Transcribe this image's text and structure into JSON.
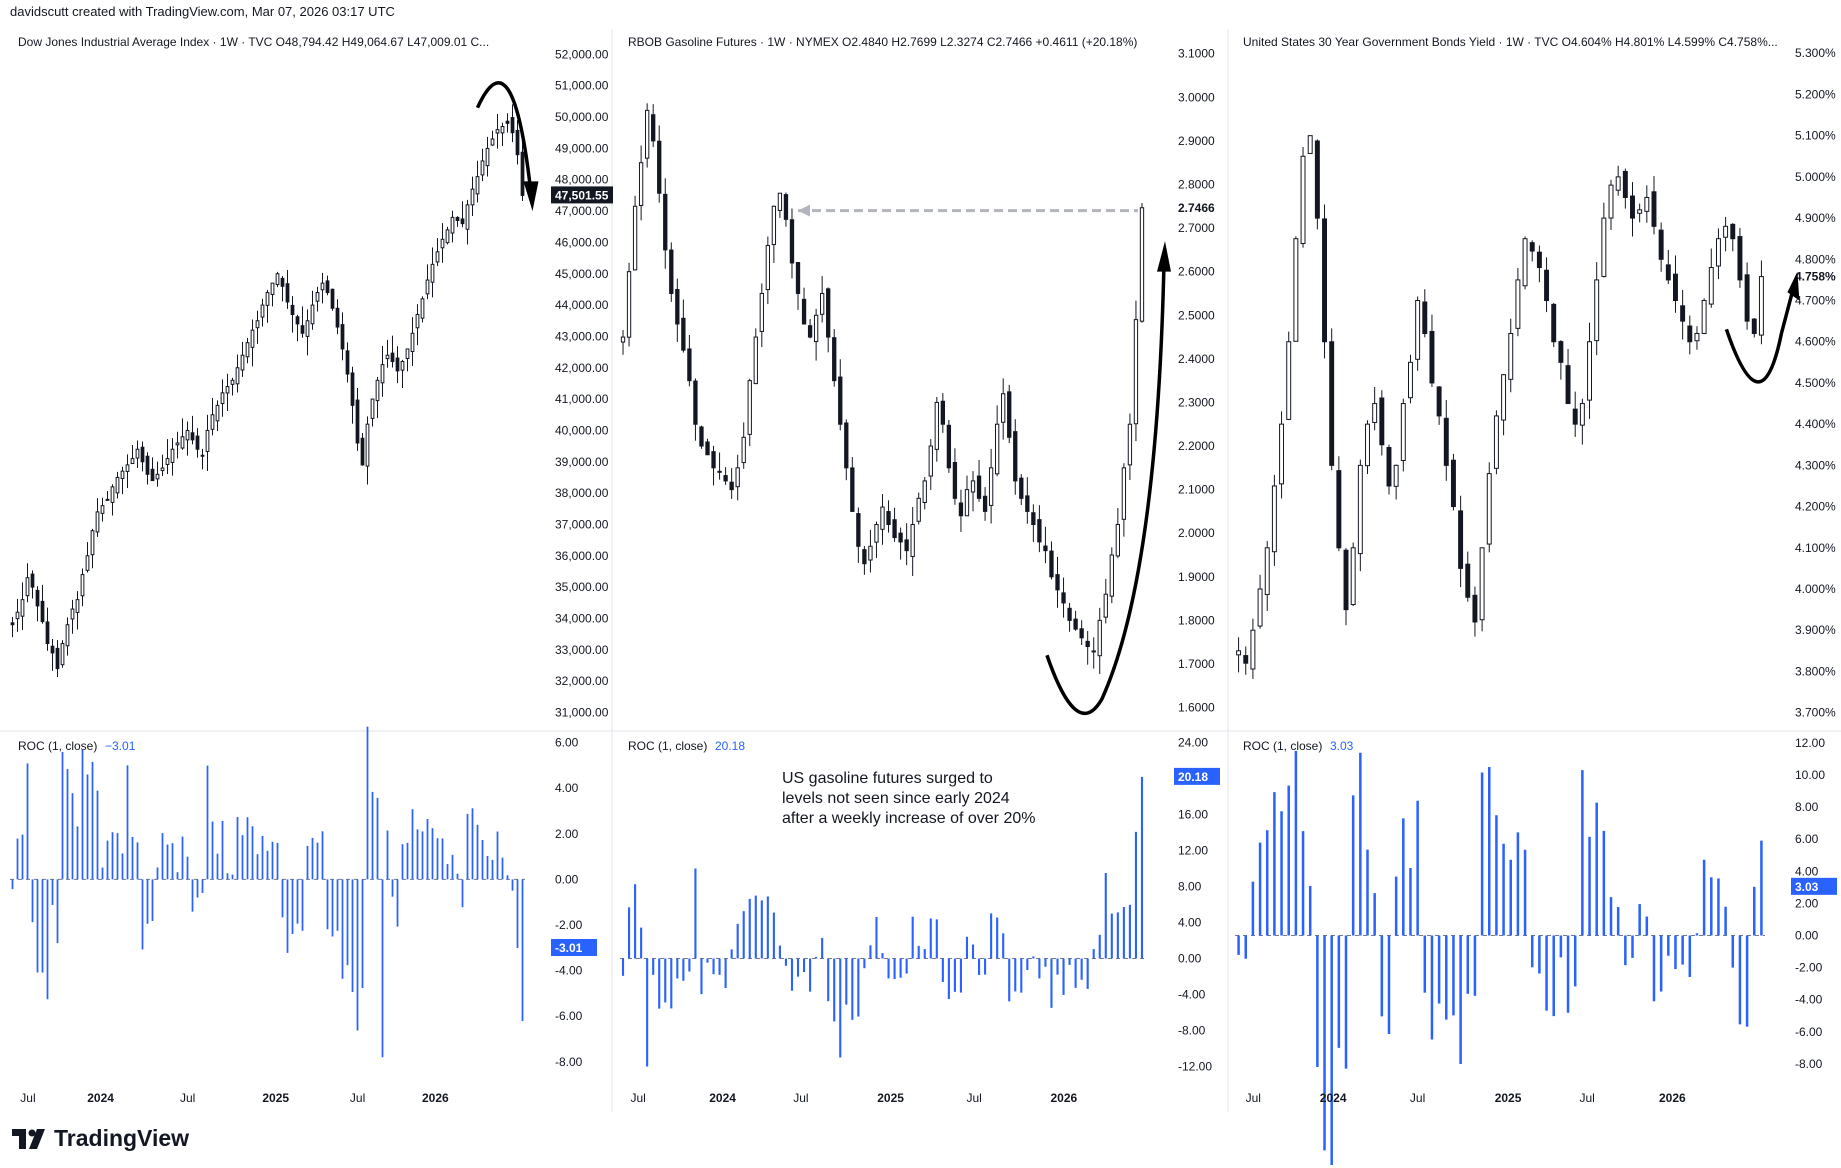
{
  "header": "davidscutt created with TradingView.com, Mar 07, 2026 03:17 UTC",
  "brand": "TradingView",
  "colors": {
    "candle": "#131722",
    "roc": "#2962ff",
    "grid": "#e0e3eb",
    "arrow": "#000000",
    "dashed": "#b2b5be"
  },
  "annotation": [
    "US gasoline futures surged to",
    "levels not seen since early 2024",
    "after a weekly increase of over 20%"
  ],
  "chart_data": [
    {
      "type": "candlestick",
      "panel": "left",
      "title": "Dow Jones Industrial Average Index · 1W · TVC  O48,794.42  H49,064.67  L47,009.01  C...",
      "interval": "1W",
      "x_ticks": [
        "Jul",
        "2024",
        "Jul",
        "2025",
        "Jul",
        "2026"
      ],
      "y_ticks": [
        "52,000.00",
        "51,000.00",
        "50,000.00",
        "49,000.00",
        "48,000.00",
        "47,000.00",
        "46,000.00",
        "45,000.00",
        "44,000.00",
        "43,000.00",
        "42,000.00",
        "41,000.00",
        "40,000.00",
        "39,000.00",
        "38,000.00",
        "37,000.00",
        "36,000.00",
        "35,000.00",
        "34,000.00",
        "33,000.00",
        "32,000.00",
        "31,000.00"
      ],
      "ylim": [
        30600,
        52300
      ],
      "last_value_label": "47,501.55",
      "trend_path": [
        33800,
        34200,
        34600,
        35300,
        35000,
        34400,
        33900,
        33200,
        32900,
        32400,
        33200,
        33800,
        34300,
        34600,
        35400,
        36000,
        36800,
        37400,
        37600,
        37800,
        38200,
        38500,
        38700,
        38900,
        39100,
        39400,
        39000,
        38600,
        38400,
        38600,
        38800,
        39100,
        39400,
        39600,
        39800,
        40000,
        39700,
        39400,
        39200,
        40000,
        40500,
        40800,
        41200,
        41400,
        41600,
        42000,
        42400,
        42800,
        43200,
        43500,
        44000,
        44400,
        44700,
        45000,
        44600,
        44100,
        43700,
        43400,
        43100,
        43500,
        44000,
        44400,
        44700,
        44400,
        43900,
        43300,
        42600,
        41800,
        40800,
        39600,
        38900,
        40200,
        41000,
        41600,
        42100,
        42400,
        42200,
        41900,
        42200,
        42600,
        43100,
        43700,
        44200,
        44800,
        45300,
        45700,
        46100,
        46400,
        46800,
        46700,
        46600,
        47200,
        47700,
        48100,
        48600,
        49000,
        49300,
        49600,
        49700,
        49800,
        49500,
        48800,
        47500
      ],
      "roc": {
        "title": "ROC (1, close)",
        "last": "−3.01",
        "last_label": "-3.01",
        "y_ticks": [
          "6.00",
          "4.00",
          "2.00",
          "0.00",
          "-2.00",
          "-4.00",
          "-6.00",
          "-8.00"
        ],
        "ylim": [
          -8.8,
          6.2
        ],
        "spikes": [
          [
            23,
            5.0
          ],
          [
            74,
            -7.8
          ],
          [
            101,
            -3.01
          ]
        ]
      }
    },
    {
      "type": "candlestick",
      "panel": "middle",
      "title": "RBOB Gasoline Futures · 1W · NYMEX  O2.4840  H2.7699  L2.3274  C2.7466  +0.4611 (+20.18%)",
      "interval": "1W",
      "x_ticks": [
        "Jul",
        "2024",
        "Jul",
        "2025",
        "Jul",
        "2026"
      ],
      "y_ticks": [
        "3.1000",
        "3.0000",
        "2.9000",
        "2.8000",
        "2.7000",
        "2.6000",
        "2.5000",
        "2.4000",
        "2.3000",
        "2.2000",
        "2.1000",
        "2.0000",
        "1.9000",
        "1.8000",
        "1.7000",
        "1.6000"
      ],
      "ylim": [
        1.56,
        3.12
      ],
      "last_value_label": "2.7466",
      "prior_level": 2.74,
      "trend_path": [
        2.45,
        2.6,
        2.75,
        2.85,
        2.97,
        2.9,
        2.78,
        2.65,
        2.55,
        2.48,
        2.42,
        2.35,
        2.25,
        2.2,
        2.18,
        2.15,
        2.14,
        2.12,
        2.1,
        2.15,
        2.22,
        2.35,
        2.45,
        2.55,
        2.66,
        2.75,
        2.78,
        2.72,
        2.62,
        2.55,
        2.48,
        2.45,
        2.5,
        2.55,
        2.45,
        2.35,
        2.25,
        2.15,
        2.05,
        1.97,
        1.93,
        1.97,
        2.02,
        2.06,
        2.02,
        1.99,
        1.98,
        1.96,
        2.02,
        2.08,
        2.12,
        2.2,
        2.3,
        2.25,
        2.15,
        2.08,
        2.04,
        2.1,
        2.12,
        2.08,
        2.05,
        2.15,
        2.25,
        2.32,
        2.22,
        2.12,
        2.08,
        2.05,
        2.02,
        1.98,
        1.96,
        1.9,
        1.87,
        1.84,
        1.8,
        1.78,
        1.76,
        1.74,
        1.73,
        1.8,
        1.86,
        1.95,
        2.02,
        2.15,
        2.25,
        2.49,
        2.7466
      ],
      "roc": {
        "title": "ROC (1, close)",
        "last": "20.18",
        "last_label": "20.18",
        "y_ticks": [
          "24.00",
          "20.00",
          "16.00",
          "12.00",
          "8.00",
          "4.00",
          "0.00",
          "-4.00",
          "-8.00",
          "-12.00"
        ],
        "ylim": [
          -13.5,
          24.5
        ],
        "spikes": [
          [
            4,
            -12.0
          ],
          [
            12,
            10.0
          ],
          [
            36,
            -11.0
          ],
          [
            80,
            9.5
          ],
          [
            86,
            20.18
          ]
        ]
      }
    },
    {
      "type": "candlestick",
      "panel": "right",
      "title": "United States 30 Year Government Bonds Yield · 1W · TVC  O4.604%  H4.801%  L4.599%  C4.758%...",
      "interval": "1W",
      "x_ticks": [
        "Jul",
        "2024",
        "Jul",
        "2025",
        "Jul",
        "2026"
      ],
      "y_ticks": [
        "5.300%",
        "5.200%",
        "5.100%",
        "5.000%",
        "4.900%",
        "4.800%",
        "4.700%",
        "4.600%",
        "4.500%",
        "4.400%",
        "4.300%",
        "4.200%",
        "4.100%",
        "4.000%",
        "3.900%",
        "3.800%",
        "3.700%"
      ],
      "ylim": [
        3.67,
        5.32
      ],
      "last_value_label": "4.758%",
      "trend_path": [
        3.85,
        3.82,
        3.9,
        4.0,
        4.1,
        4.25,
        4.4,
        4.6,
        4.85,
        5.05,
        5.1,
        4.9,
        4.6,
        4.3,
        4.1,
        3.95,
        4.1,
        4.3,
        4.4,
        4.45,
        4.35,
        4.25,
        4.3,
        4.45,
        4.55,
        4.7,
        4.62,
        4.5,
        4.42,
        4.3,
        4.2,
        4.05,
        3.98,
        3.92,
        4.1,
        4.28,
        4.42,
        4.52,
        4.62,
        4.75,
        4.85,
        4.82,
        4.78,
        4.7,
        4.6,
        4.55,
        4.45,
        4.4,
        4.45,
        4.6,
        4.75,
        4.9,
        4.98,
        5.0,
        4.95,
        4.9,
        4.92,
        4.95,
        4.88,
        4.8,
        4.75,
        4.7,
        4.65,
        4.6,
        4.62,
        4.7,
        4.78,
        4.85,
        4.88,
        4.85,
        4.75,
        4.65,
        4.62,
        4.758
      ],
      "roc": {
        "title": "ROC (1, close)",
        "last": "3.03",
        "last_label": "3.03",
        "y_ticks": [
          "12.00",
          "10.00",
          "8.00",
          "6.00",
          "4.00",
          "2.00",
          "0.00",
          "-2.00",
          "-4.00",
          "-6.00",
          "-8.00"
        ],
        "ylim": [
          -9.0,
          12.3
        ],
        "spikes": [
          [
            9,
            6.5
          ],
          [
            14,
            -7.0
          ],
          [
            31,
            -8.0
          ],
          [
            48,
            10.3
          ],
          [
            72,
            3.03
          ]
        ]
      }
    }
  ]
}
